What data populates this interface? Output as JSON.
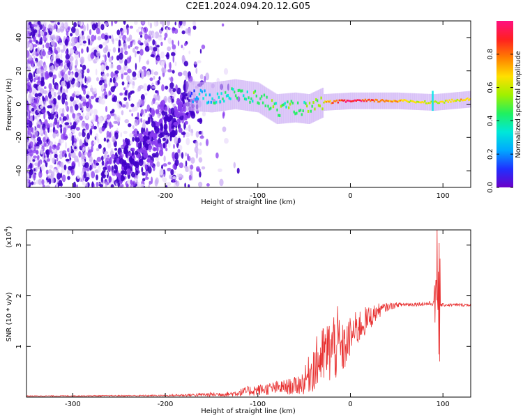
{
  "figure_title": "C2E1.2024.094.20.12.G05",
  "colors": {
    "snr_line": "#e83030",
    "spec_dark": "#4000c8",
    "spec_mid": "#8a3cf0",
    "spec_light": "#c8a8f4",
    "spec_faint": "#ece0fb",
    "ridge_cyan": "#00e8e8",
    "ridge_green": "#40e040",
    "ridge_yellow": "#ffd000",
    "ridge_red": "#ff2020"
  },
  "chart_data": [
    {
      "type": "heatmap",
      "title": "",
      "xlabel": "Height of straight line (km)",
      "ylabel": "Frequency (Hz)",
      "xlim": [
        -350,
        130
      ],
      "ylim": [
        -50,
        50
      ],
      "xticks": [
        -300,
        -200,
        -100,
        0,
        100
      ],
      "yticks": [
        -40,
        -20,
        0,
        20,
        40
      ],
      "colorbar": {
        "label": "Normalized spectral amplitude",
        "range": [
          0,
          1
        ],
        "ticks": [
          "0.0",
          "0.2",
          "0.4",
          "0.6",
          "0.8"
        ],
        "colormap": [
          "#6c00c8",
          "#2030ff",
          "#00a8ff",
          "#00e8d8",
          "#20f060",
          "#a0f000",
          "#ffe000",
          "#ff8000",
          "#ff2020",
          "#ff1080"
        ]
      },
      "ridge_frequency_hz": [
        {
          "x": -175,
          "f": 5
        },
        {
          "x": -150,
          "f": 4
        },
        {
          "x": -125,
          "f": 6
        },
        {
          "x": -100,
          "f": 4
        },
        {
          "x": -80,
          "f": -3
        },
        {
          "x": -60,
          "f": -2
        },
        {
          "x": -45,
          "f": -3
        },
        {
          "x": -30,
          "f": 1
        },
        {
          "x": 0,
          "f": 2
        },
        {
          "x": 50,
          "f": 2
        },
        {
          "x": 90,
          "f": 1
        },
        {
          "x": 130,
          "f": 3
        }
      ],
      "ridge_amplitude": [
        {
          "x": -175,
          "a": 0.15
        },
        {
          "x": -150,
          "a": 0.35
        },
        {
          "x": -100,
          "a": 0.45
        },
        {
          "x": -70,
          "a": 0.45
        },
        {
          "x": -40,
          "a": 0.45
        },
        {
          "x": -20,
          "a": 0.8
        },
        {
          "x": 0,
          "a": 0.95
        },
        {
          "x": 40,
          "a": 0.75
        },
        {
          "x": 80,
          "a": 0.6
        },
        {
          "x": 130,
          "a": 0.7
        }
      ]
    },
    {
      "type": "line",
      "title": "",
      "xlabel": "Height of straight line (km)",
      "ylabel": "SNR (10 * v/v)",
      "y_multiplier_label": "(x10",
      "y_multiplier_exp": "4",
      "y_multiplier_close": ")",
      "xlim": [
        -350,
        130
      ],
      "ylim": [
        0,
        3.3
      ],
      "xticks": [
        -300,
        -200,
        -100,
        0,
        100
      ],
      "yticks": [
        1,
        2,
        3
      ],
      "series": [
        {
          "envelope": {
            "x": [
              -350,
              -200,
              -130,
              -110,
              -90,
              -70,
              -60,
              -50,
              -40,
              -30,
              -20,
              -15,
              -10,
              -5,
              0,
              10,
              20,
              30,
              40,
              50,
              60,
              80,
              90,
              93,
              95,
              97,
              100,
              130
            ],
            "mean": [
              0.02,
              0.03,
              0.06,
              0.12,
              0.16,
              0.2,
              0.22,
              0.3,
              0.6,
              0.8,
              0.95,
              1.1,
              0.9,
              1.0,
              1.2,
              1.4,
              1.55,
              1.7,
              1.78,
              1.82,
              1.83,
              1.84,
              1.85,
              1.85,
              1.82,
              1.82,
              1.82,
              1.82
            ],
            "amp": [
              0.01,
              0.015,
              0.05,
              0.1,
              0.12,
              0.15,
              0.18,
              0.25,
              0.5,
              0.6,
              0.7,
              0.8,
              0.55,
              0.45,
              0.4,
              0.35,
              0.25,
              0.15,
              0.08,
              0.05,
              0.04,
              0.04,
              0.05,
              1.2,
              0.9,
              0.05,
              0.03,
              0.03
            ]
          }
        }
      ]
    }
  ]
}
